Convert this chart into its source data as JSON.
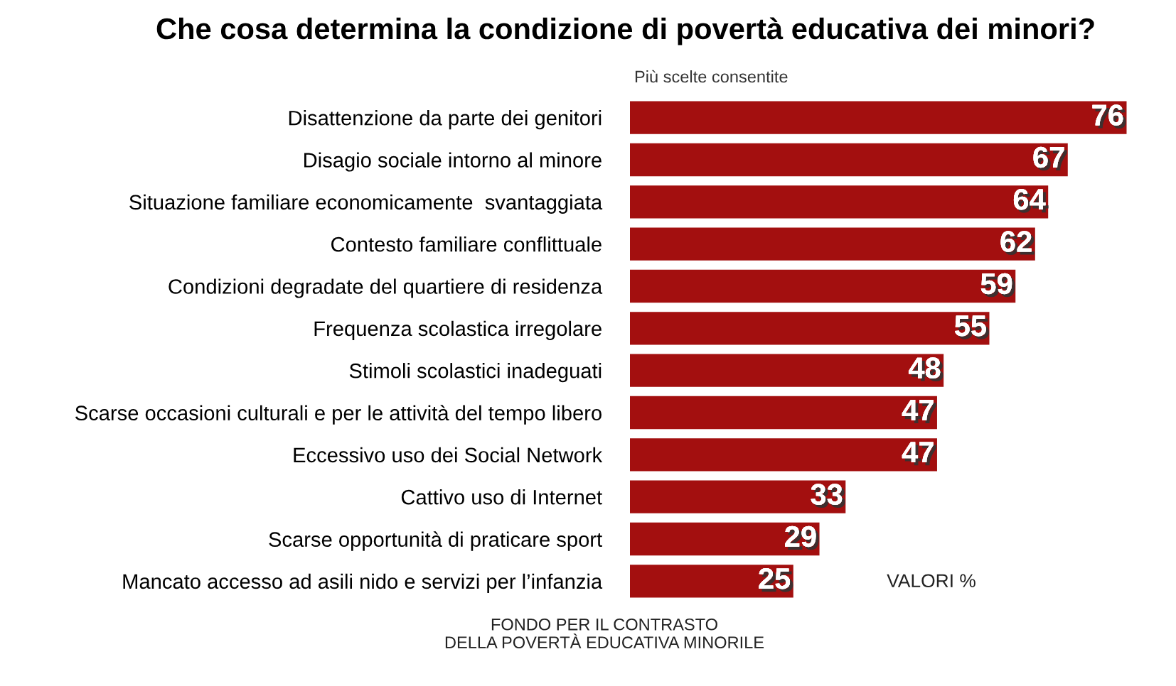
{
  "chart_data": {
    "type": "bar",
    "orientation": "horizontal",
    "title": "Che cosa determina la condizione di povertà educativa dei minori?",
    "subtitle": "Più scelte consentite",
    "categories": [
      "Disattenzione da parte dei genitori",
      "Disagio sociale intorno al minore",
      "Situazione familiare economicamente  svantaggiata",
      "Contesto familiare conflittuale",
      "Condizioni degradate del quartiere di residenza",
      "Frequenza scolastica irregolare",
      "Stimoli scolastici inadeguati",
      "Scarse occasioni culturali e per le attività del tempo libero",
      "Eccessivo uso dei Social Network",
      "Cattivo uso di Internet",
      "Scarse opportunità di praticare sport",
      "Mancato accesso ad asili nido e servizi per l’infanzia"
    ],
    "values": [
      76,
      67,
      64,
      62,
      59,
      55,
      48,
      47,
      47,
      33,
      29,
      25
    ],
    "color": "#a30f0f",
    "data_labels": true,
    "grid": false,
    "legend": false,
    "annotations": [
      "VALORI %",
      "FONDO PER IL CONTRASTO\nDELLA POVERTÀ EDUCATIVA MINORILE"
    ]
  }
}
